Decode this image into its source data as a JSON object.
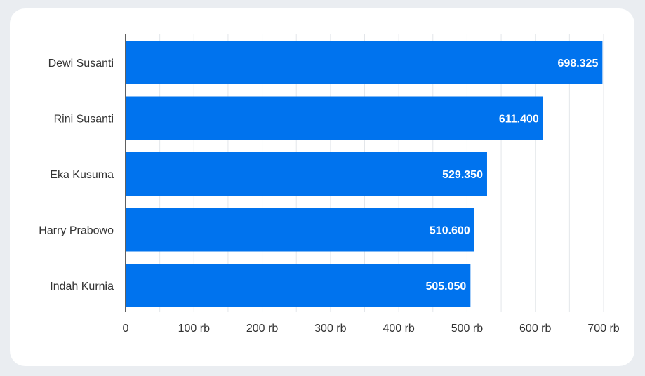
{
  "chart_data": {
    "type": "bar",
    "orientation": "horizontal",
    "categories": [
      "Dewi Susanti",
      "Rini Susanti",
      "Eka Kusuma",
      "Harry Prabowo",
      "Indah Kurnia"
    ],
    "values": [
      698325,
      611400,
      529350,
      510600,
      505050
    ],
    "value_labels": [
      "698.325",
      "611.400",
      "529.350",
      "510.600",
      "505.050"
    ],
    "xlim": [
      0,
      700000
    ],
    "x_ticks": [
      0,
      100000,
      200000,
      300000,
      400000,
      500000,
      600000,
      700000
    ],
    "x_tick_labels": [
      "0",
      "100 rb",
      "200 rb",
      "300 rb",
      "400 rb",
      "500 rb",
      "600 rb",
      "700 rb"
    ],
    "title": "",
    "xlabel": "",
    "ylabel": "",
    "grid": true,
    "bar_color": "#0073ee"
  }
}
